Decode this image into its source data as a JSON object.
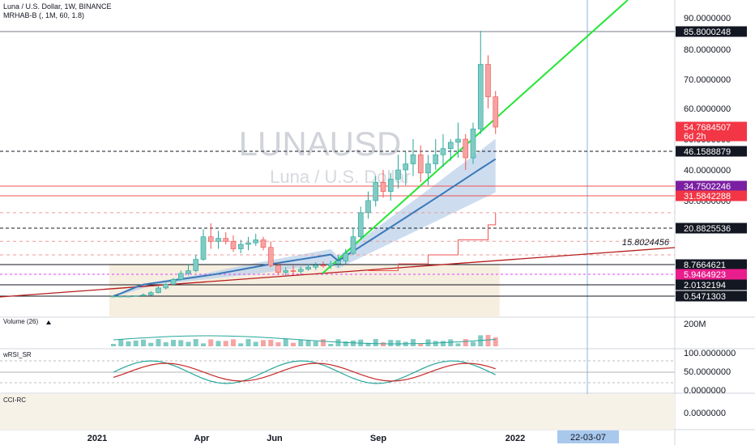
{
  "header": {
    "symbol_line": "Luna / U.S. Dollar, 1W, BINANCE",
    "indicator_line": "MRHAB-B (, 1M, 60, 1.8)"
  },
  "watermark": {
    "symbol": "LUNAUSD",
    "name": "Luna / U.S. Dollar"
  },
  "panes": {
    "volume_label": "Volume (26)",
    "wrsi_label": "wRSI_SR",
    "cci_label": "CCI-RC"
  },
  "chart_data": {
    "type": "candlestick",
    "price_axis": {
      "ticks": [
        "90.0000000",
        "80.0000000",
        "70.0000000",
        "60.0000000",
        "50.0000000",
        "40.0000000",
        "30.0000000"
      ],
      "labels": [
        {
          "text": "85.8000248",
          "kind": "dark"
        },
        {
          "text": "54.7684507",
          "kind": "red",
          "sub": "6d 2h"
        },
        {
          "text": "46.1588879",
          "kind": "dark"
        },
        {
          "text": "34.7502246",
          "kind": "purple"
        },
        {
          "text": "31.5842288",
          "kind": "red"
        },
        {
          "text": "20.8825536",
          "kind": "dark"
        },
        {
          "text": "8.7664621",
          "kind": "dark"
        },
        {
          "text": "5.9464923",
          "kind": "magenta"
        },
        {
          "text": "2.0132194",
          "kind": "dark"
        },
        {
          "text": "0.5471303",
          "kind": "dark"
        }
      ]
    },
    "trendline_label": "15.8024456",
    "volume_axis": {
      "label": "200M"
    },
    "wrsi_axis": {
      "ticks": [
        "100.0000000",
        "50.0000000",
        "0.0000000"
      ]
    },
    "cci_axis": {
      "ticks": [
        "0.0000000"
      ]
    },
    "time_axis": {
      "labels": [
        "2021",
        "Apr",
        "Jun",
        "Sep",
        "2022"
      ],
      "cursor": "22-03-07"
    },
    "candles": [
      [
        0.2,
        0.25,
        0.15,
        0.2
      ],
      [
        0.2,
        0.3,
        0.15,
        0.25
      ],
      [
        0.25,
        0.5,
        0.2,
        0.4
      ],
      [
        0.4,
        0.65,
        0.35,
        0.6
      ],
      [
        0.6,
        0.9,
        0.5,
        0.7
      ],
      [
        0.7,
        1.2,
        0.6,
        1.0
      ],
      [
        1.0,
        1.8,
        0.9,
        1.6
      ],
      [
        1.6,
        2.6,
        1.4,
        2.2
      ],
      [
        2.2,
        4.5,
        2.0,
        4.0
      ],
      [
        4.0,
        7.0,
        3.6,
        6.2
      ],
      [
        6.2,
        9.0,
        5.5,
        7.0
      ],
      [
        7.0,
        12.0,
        6.5,
        10.5
      ],
      [
        10.5,
        20.5,
        10.0,
        18.0
      ],
      [
        18.0,
        22.5,
        14.0,
        16.5
      ],
      [
        16.5,
        20.0,
        14.0,
        17.5
      ],
      [
        17.5,
        19.5,
        15.5,
        16.5
      ],
      [
        16.5,
        18.5,
        13.0,
        14.0
      ],
      [
        14.0,
        17.0,
        12.5,
        15.5
      ],
      [
        15.5,
        18.0,
        13.5,
        16.0
      ],
      [
        16.0,
        19.0,
        15.0,
        17.0
      ],
      [
        17.0,
        18.0,
        13.5,
        14.5
      ],
      [
        14.5,
        16.5,
        8.0,
        8.5
      ],
      [
        8.5,
        9.5,
        5.8,
        6.5
      ],
      [
        6.5,
        8.0,
        5.5,
        7.0
      ],
      [
        7.0,
        8.5,
        6.0,
        6.8
      ],
      [
        6.8,
        8.2,
        6.0,
        7.4
      ],
      [
        7.4,
        9.0,
        7.0,
        8.0
      ],
      [
        8.0,
        9.5,
        7.2,
        8.6
      ],
      [
        8.6,
        9.8,
        7.8,
        8.4
      ],
      [
        8.4,
        10.0,
        7.5,
        9.0
      ],
      [
        9.0,
        12.0,
        8.0,
        10.0
      ],
      [
        10.0,
        14.0,
        9.0,
        12.5
      ],
      [
        12.5,
        21.0,
        12.0,
        18.0
      ],
      [
        18.0,
        28.0,
        17.0,
        26.0
      ],
      [
        26.0,
        33.0,
        24.0,
        30.0
      ],
      [
        30.0,
        38.0,
        28.0,
        36.0
      ],
      [
        36.0,
        40.0,
        31.0,
        33.0
      ],
      [
        33.0,
        39.0,
        30.0,
        37.0
      ],
      [
        37.0,
        45.0,
        34.0,
        40.0
      ],
      [
        40.0,
        46.0,
        35.0,
        42.0
      ],
      [
        42.0,
        50.0,
        38.0,
        45.0
      ],
      [
        45.0,
        48.0,
        36.0,
        39.0
      ],
      [
        39.0,
        45.0,
        35.0,
        42.0
      ],
      [
        42.0,
        50.0,
        40.0,
        45.0
      ],
      [
        45.0,
        52.0,
        41.0,
        47.0
      ],
      [
        47.0,
        50.0,
        43.0,
        49.0
      ],
      [
        49.0,
        56.0,
        44.0,
        50.0
      ],
      [
        50.0,
        52.0,
        40.0,
        44.0
      ],
      [
        44.0,
        56.0,
        42.0,
        54.0
      ],
      [
        54.0,
        86.0,
        52.0,
        75.0
      ],
      [
        75.0,
        78.0,
        60.0,
        64.0
      ],
      [
        64.0,
        66.0,
        52.0,
        54.77
      ]
    ]
  }
}
